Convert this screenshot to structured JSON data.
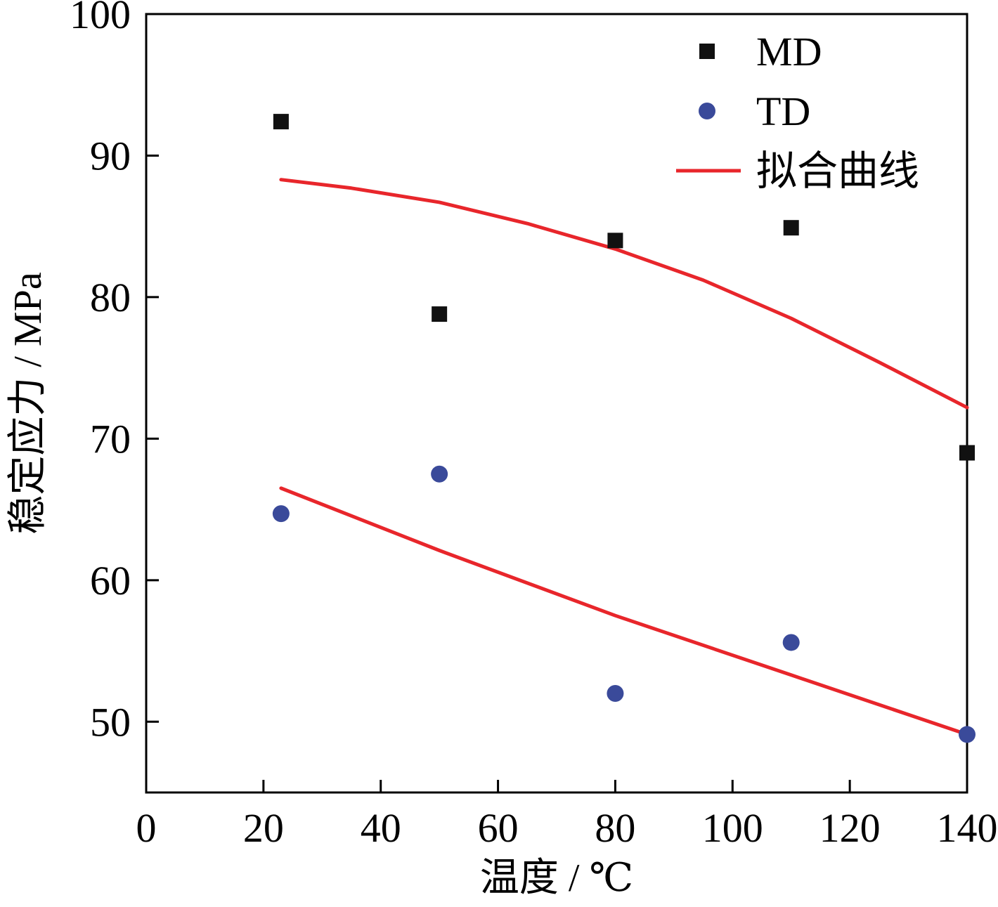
{
  "chart_data": {
    "type": "scatter",
    "title": "",
    "xlabel": "温度 / ℃",
    "ylabel": "稳定应力 / MPa",
    "xlim": [
      0,
      140
    ],
    "ylim": [
      45,
      100
    ],
    "x_ticks": [
      0,
      20,
      40,
      60,
      80,
      100,
      120,
      140
    ],
    "y_ticks": [
      50,
      60,
      70,
      80,
      90,
      100
    ],
    "grid": false,
    "legend_position": "top-right",
    "series": [
      {
        "name": "MD",
        "marker": "square",
        "color": "#111111",
        "x": [
          23,
          50,
          80,
          110,
          140
        ],
        "y": [
          92.4,
          78.8,
          84.0,
          84.9,
          69.0
        ]
      },
      {
        "name": "TD",
        "marker": "circle",
        "color": "#3a4a9a",
        "x": [
          23,
          50,
          80,
          110,
          140
        ],
        "y": [
          64.7,
          67.5,
          52.0,
          55.6,
          49.1
        ]
      }
    ],
    "fit_lines": [
      {
        "name": "拟合曲线",
        "color": "#e8262b",
        "show_in_legend": true,
        "x": [
          23,
          35,
          50,
          65,
          80,
          95,
          110,
          125,
          140
        ],
        "y": [
          88.3,
          87.7,
          86.7,
          85.2,
          83.4,
          81.2,
          78.5,
          75.4,
          72.2
        ]
      },
      {
        "name": "拟合曲线",
        "color": "#e8262b",
        "show_in_legend": false,
        "x": [
          23,
          50,
          80,
          110,
          140
        ],
        "y": [
          66.5,
          62.1,
          57.5,
          53.3,
          49.1
        ]
      }
    ]
  }
}
